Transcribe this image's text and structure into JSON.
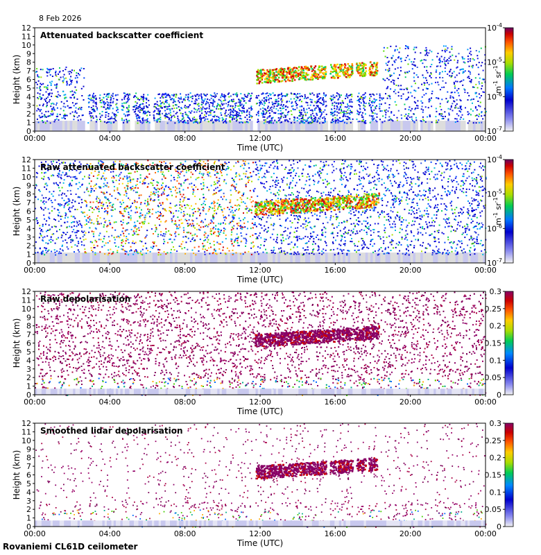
{
  "date": "8 Feb 2026",
  "footer": "Rovaniemi CL61D ceilometer",
  "chart_data": [
    {
      "type": "heatmap",
      "title": "Attenuated backscatter coefficient",
      "xlabel": "Time (UTC)",
      "ylabel": "Height (km)",
      "x_ticks": [
        "00:00",
        "04:00",
        "08:00",
        "12:00",
        "16:00",
        "20:00",
        "00:00"
      ],
      "y_ticks": [
        "0",
        "1",
        "2",
        "3",
        "4",
        "5",
        "6",
        "7",
        "8",
        "9",
        "10",
        "11",
        "12"
      ],
      "ylim": [
        0,
        12
      ],
      "colorbar": {
        "scale": "log",
        "ticks": [
          "10-7",
          "10-6",
          "10-5",
          "10-4"
        ],
        "label": "m-1 sr-1"
      }
    },
    {
      "type": "heatmap",
      "title": "Raw attenuated backscatter coefficient",
      "xlabel": "Time (UTC)",
      "ylabel": "Height (km)",
      "x_ticks": [
        "00:00",
        "04:00",
        "08:00",
        "12:00",
        "16:00",
        "20:00",
        "00:00"
      ],
      "y_ticks": [
        "0",
        "1",
        "2",
        "3",
        "4",
        "5",
        "6",
        "7",
        "8",
        "9",
        "10",
        "11",
        "12"
      ],
      "ylim": [
        0,
        12
      ],
      "colorbar": {
        "scale": "log",
        "ticks": [
          "10-7",
          "10-6",
          "10-5",
          "10-4"
        ],
        "label": "m-1 sr-1"
      }
    },
    {
      "type": "heatmap",
      "title": "Raw depolarisation",
      "xlabel": "Time (UTC)",
      "ylabel": "Height (km)",
      "x_ticks": [
        "00:00",
        "04:00",
        "08:00",
        "12:00",
        "16:00",
        "20:00",
        "00:00"
      ],
      "y_ticks": [
        "0",
        "1",
        "2",
        "3",
        "4",
        "5",
        "6",
        "7",
        "8",
        "9",
        "10",
        "11",
        "12"
      ],
      "ylim": [
        0,
        12
      ],
      "colorbar": {
        "scale": "linear",
        "ticks": [
          "0",
          "0.05",
          "0.1",
          "0.15",
          "0.2",
          "0.25",
          "0.3"
        ],
        "range": [
          0,
          0.3
        ]
      }
    },
    {
      "type": "heatmap",
      "title": "Smoothed lidar depolarisation",
      "xlabel": "Time (UTC)",
      "ylabel": "Height (km)",
      "x_ticks": [
        "00:00",
        "04:00",
        "08:00",
        "12:00",
        "16:00",
        "20:00",
        "00:00"
      ],
      "y_ticks": [
        "0",
        "1",
        "2",
        "3",
        "4",
        "5",
        "6",
        "7",
        "8",
        "9",
        "10",
        "11",
        "12"
      ],
      "ylim": [
        0,
        12
      ],
      "colorbar": {
        "scale": "linear",
        "ticks": [
          "0",
          "0.05",
          "0.1",
          "0.15",
          "0.2",
          "0.25",
          "0.3"
        ],
        "range": [
          0,
          0.3
        ]
      }
    }
  ]
}
